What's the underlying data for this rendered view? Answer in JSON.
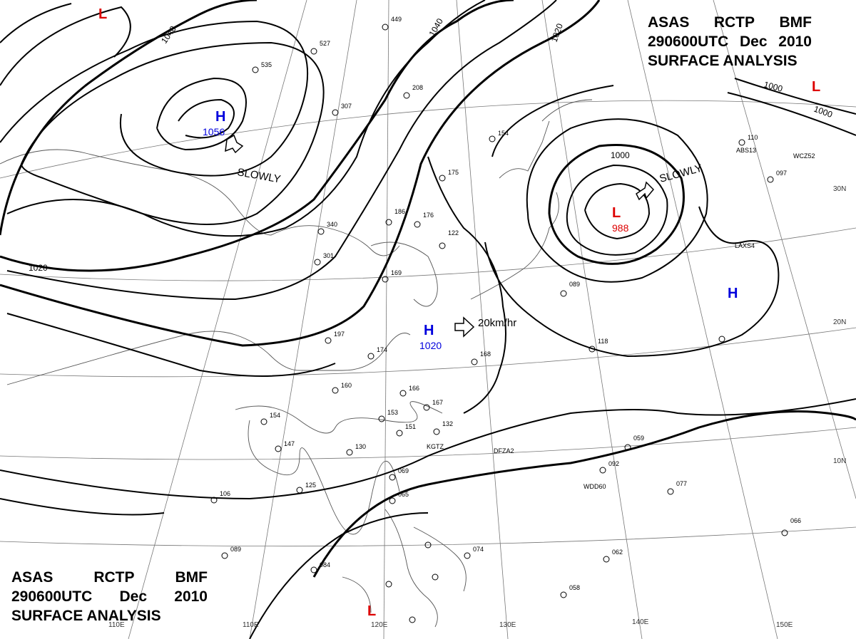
{
  "header": {
    "line1": [
      "ASAS",
      "RCTP",
      "BMF"
    ],
    "line2": [
      "290600UTC",
      "Dec",
      "2010"
    ],
    "line3": "SURFACE ANALYSIS"
  },
  "colors": {
    "high": "#0000dd",
    "low": "#dd0000",
    "isobar": "#000000",
    "coast": "#555555",
    "grid": "#777777"
  },
  "pressure_centers": [
    {
      "type": "H",
      "value": "1056"
    },
    {
      "type": "L",
      "value": "988"
    },
    {
      "type": "H",
      "value": "1020"
    },
    {
      "type": "H",
      "value": ""
    },
    {
      "type": "L",
      "value": ""
    },
    {
      "type": "L",
      "value": ""
    },
    {
      "type": "L",
      "value": ""
    }
  ],
  "motion_labels": [
    "SLOWLY",
    "SLOWLY",
    "20km/hr"
  ],
  "isobar_labels": [
    "1040",
    "1040",
    "1020",
    "1020",
    "1000",
    "1000",
    "1000"
  ],
  "lat_labels": [
    "30N",
    "20N",
    "10N"
  ],
  "lon_labels": [
    "110E",
    "110E",
    "120E",
    "130E",
    "140E",
    "150E"
  ],
  "stations": [
    "449",
    "527",
    "535",
    "307",
    "208",
    "154",
    "175",
    "110",
    "097",
    "186",
    "176",
    "340",
    "301",
    "122",
    "169",
    "197",
    "174",
    "168",
    "160",
    "166",
    "167",
    "153",
    "132",
    "151",
    "154",
    "147",
    "130",
    "125",
    "069",
    "065",
    "106",
    "089",
    "084",
    "074",
    "062",
    "066",
    "059",
    "092",
    "077",
    "058",
    "118",
    "089",
    "KGTZ",
    "DFZA2",
    "WDD60",
    "ABS13",
    "WCZ52",
    "LAXS4"
  ]
}
